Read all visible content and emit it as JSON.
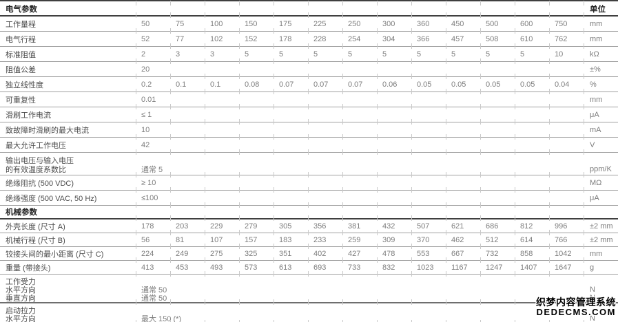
{
  "colors": {
    "section_line": "#3f3f3f",
    "row_line": "#9e9e9e",
    "tick": "#c9c9c9",
    "label_text": "#4b4b4b",
    "value_text": "#7d7d7d",
    "header_text": "#242424"
  },
  "watermark": {
    "line1": "织梦内容管理系统",
    "line2": "DEDECMS.COM"
  },
  "table": {
    "sections": [
      {
        "header": "电气参数",
        "unit_header": "单位",
        "rows": [
          {
            "type": "data",
            "label": "工作量程",
            "values": [
              "50",
              "75",
              "100",
              "150",
              "175",
              "225",
              "250",
              "300",
              "360",
              "450",
              "500",
              "600",
              "750"
            ],
            "unit": "mm"
          },
          {
            "type": "data",
            "label": "电气行程",
            "values": [
              "52",
              "77",
              "102",
              "152",
              "178",
              "228",
              "254",
              "304",
              "366",
              "457",
              "508",
              "610",
              "762"
            ],
            "unit": "mm"
          },
          {
            "type": "data",
            "label": "标准阻值",
            "values": [
              "2",
              "3",
              "3",
              "5",
              "5",
              "5",
              "5",
              "5",
              "5",
              "5",
              "5",
              "5",
              "10"
            ],
            "unit": "kΩ"
          },
          {
            "type": "data",
            "label": "阻值公差",
            "values": [
              "20"
            ],
            "unit": "±%"
          },
          {
            "type": "data",
            "label": "独立线性度",
            "values": [
              "0.2",
              "0.1",
              "0.1",
              "0.08",
              "0.07",
              "0.07",
              "0.07",
              "0.06",
              "0.05",
              "0.05",
              "0.05",
              "0.05",
              "0.04"
            ],
            "unit": "%"
          },
          {
            "type": "data",
            "label": "可重复性",
            "values": [
              "0.01"
            ],
            "unit": "mm"
          },
          {
            "type": "data",
            "label": "滑刷工作电流",
            "values": [
              "≤ 1"
            ],
            "unit": "μA"
          },
          {
            "type": "data",
            "label": "致故障时滑刷的最大电流",
            "values": [
              "10"
            ],
            "unit": "mA"
          },
          {
            "type": "data",
            "label": "最大允许工作电压",
            "values": [
              "42"
            ],
            "unit": "V"
          },
          {
            "type": "multi",
            "lines": [
              {
                "label": "输出电压与输入电压"
              },
              {
                "label": "的有效温度系数比",
                "value": "通常 5",
                "unit": "ppm/K"
              }
            ]
          },
          {
            "type": "data",
            "label": "绝缘阻抗 (500 VDC)",
            "values": [
              "≥ 10"
            ],
            "unit": "MΩ"
          },
          {
            "type": "data",
            "label": "绝缘强度 (500 VAC, 50 Hz)",
            "values": [
              "≤100"
            ],
            "unit": "μA"
          }
        ]
      },
      {
        "header": "机械参数",
        "unit_header": "",
        "rows": [
          {
            "type": "data",
            "label": "外壳长度 (尺寸 A)",
            "values": [
              "178",
              "203",
              "229",
              "279",
              "305",
              "356",
              "381",
              "432",
              "507",
              "621",
              "686",
              "812",
              "996"
            ],
            "unit": "±2 mm"
          },
          {
            "type": "data",
            "label": "机械行程 (尺寸 B)",
            "values": [
              "56",
              "81",
              "107",
              "157",
              "183",
              "233",
              "259",
              "309",
              "370",
              "462",
              "512",
              "614",
              "766"
            ],
            "unit": "±2 mm"
          },
          {
            "type": "data",
            "label": "铰接头间的最小距离 (尺寸 C)",
            "values": [
              "224",
              "249",
              "275",
              "325",
              "351",
              "402",
              "427",
              "478",
              "553",
              "667",
              "732",
              "858",
              "1042"
            ],
            "unit": "mm"
          },
          {
            "type": "data",
            "label": "重量 (带接头)",
            "values": [
              "413",
              "453",
              "493",
              "573",
              "613",
              "693",
              "733",
              "832",
              "1023",
              "1167",
              "1247",
              "1407",
              "1647"
            ],
            "unit": "g"
          },
          {
            "type": "multi",
            "separator": "strong",
            "lines": [
              {
                "label": "工作受力"
              },
              {
                "label": "水平方向",
                "value": "通常 50",
                "unit": "N"
              },
              {
                "label": "垂直方向",
                "value": "通常 50",
                "unit": "N"
              }
            ]
          },
          {
            "type": "multi",
            "lines": [
              {
                "label": "启动拉力"
              },
              {
                "label": "水平方向",
                "value": "最大 150 (*)",
                "unit": "N"
              }
            ]
          }
        ]
      }
    ]
  }
}
